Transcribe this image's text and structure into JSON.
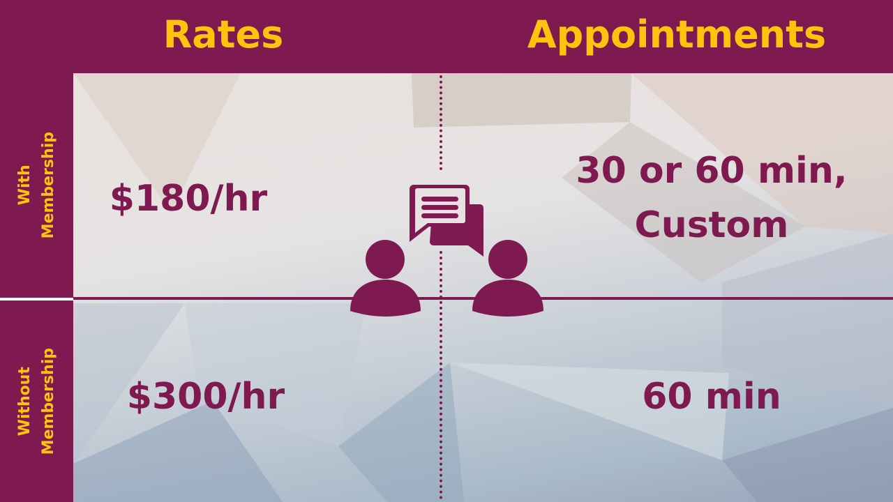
{
  "columns": {
    "rates": "Rates",
    "appointments": "Appointments"
  },
  "rows": [
    {
      "label_line1": "With",
      "label_line2": "Membership",
      "rate": "$180/hr",
      "appointment_line1": "30 or 60 min,",
      "appointment_line2": "Custom"
    },
    {
      "label_line1": "Without",
      "label_line2": "Membership",
      "rate": "$300/hr",
      "appointment_line1": "60 min",
      "appointment_line2": ""
    }
  ],
  "icons": [
    "chat-bubbles-icon",
    "person-icon",
    "person-icon"
  ],
  "colors": {
    "primary": "#7e1a50",
    "accent": "#ffc20e"
  }
}
